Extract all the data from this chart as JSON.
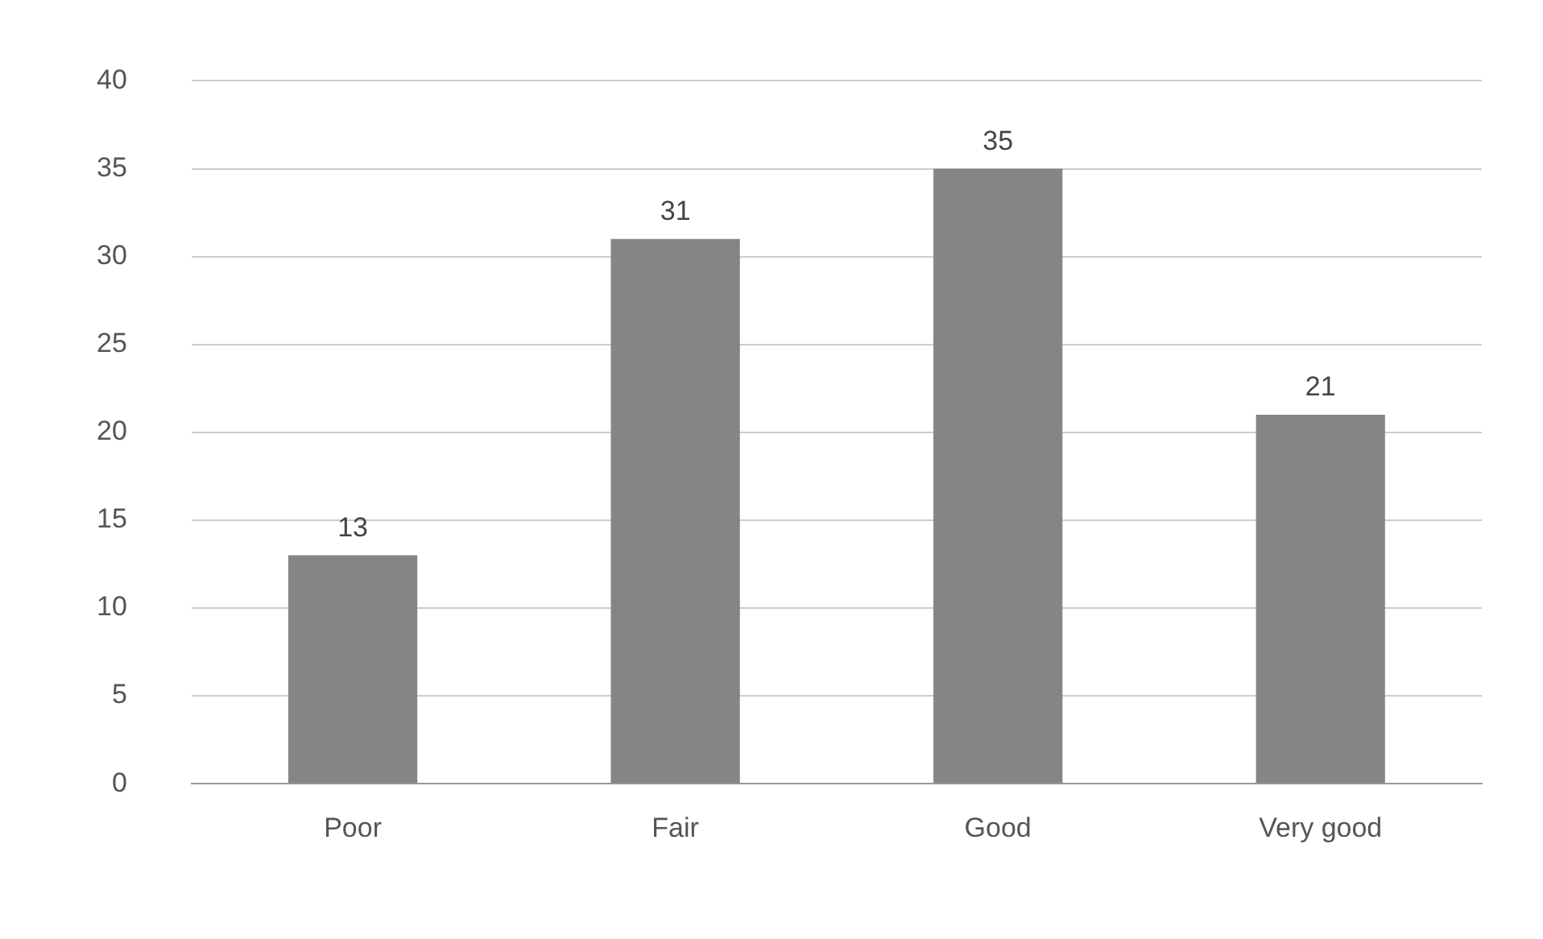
{
  "chart_data": {
    "type": "bar",
    "categories": [
      "Poor",
      "Fair",
      "Good",
      "Very good"
    ],
    "values": [
      13,
      31,
      35,
      21
    ],
    "color": "#858585",
    "ylim": [
      0,
      40
    ],
    "yticks": [
      0,
      5,
      10,
      15,
      20,
      25,
      30,
      35,
      40
    ],
    "grid": "y",
    "data_labels": true
  }
}
